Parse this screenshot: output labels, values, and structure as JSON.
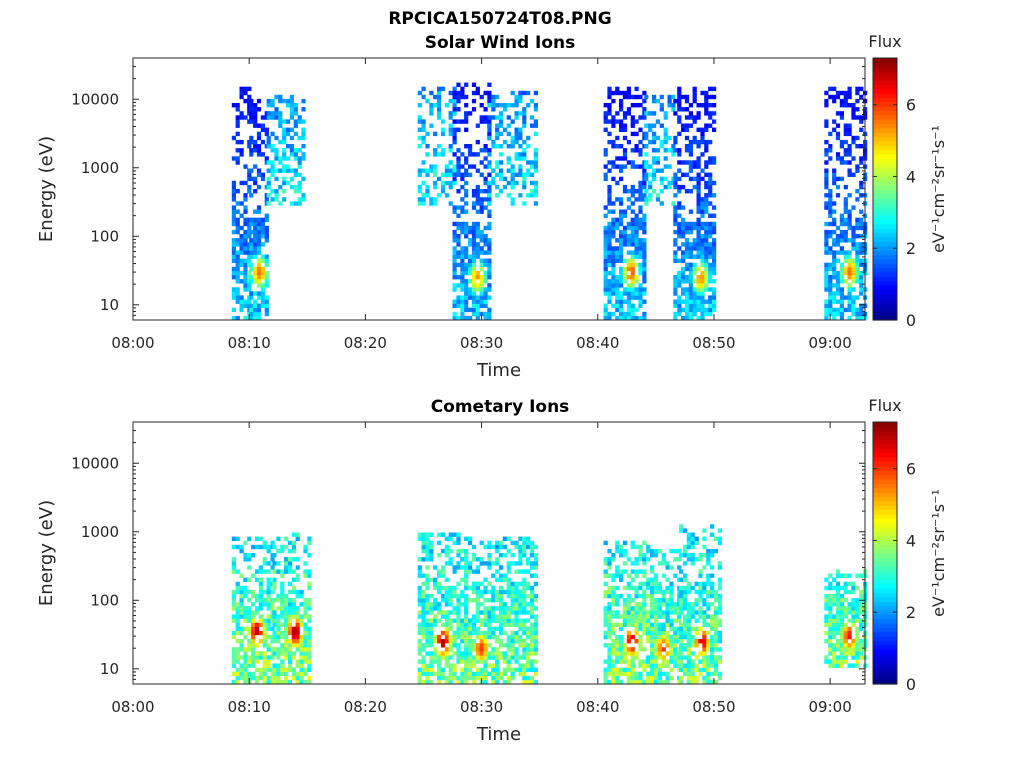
{
  "figure": {
    "title": "RPCICA150724T08.PNG"
  },
  "colors": {
    "axis": "#262626",
    "background": "#ffffff",
    "colormap": "jet"
  },
  "chart_data": [
    {
      "type": "heatmap",
      "title": "Solar Wind Ions",
      "xlabel": "Time",
      "ylabel": "Energy (eV)",
      "xticks": [
        "08:00",
        "08:10",
        "08:20",
        "08:30",
        "08:40",
        "08:50",
        "09:00"
      ],
      "yticks": [
        "10",
        "100",
        "1000",
        "10000"
      ],
      "yscale": "log",
      "xlim_min": [
        0,
        63
      ],
      "ylim": [
        6,
        40000
      ],
      "colorbar": {
        "title": "Flux",
        "label": "eV⁻¹cm⁻²sr⁻¹s⁻¹",
        "ticks": [
          "0",
          "2",
          "4",
          "6"
        ],
        "range": [
          0,
          7.3
        ]
      },
      "bursts": [
        {
          "start": 8.5,
          "end": 10.0,
          "emax": 16000,
          "emin": 6,
          "peak_e": 30,
          "peak_t": 10.5,
          "peak_flux": 5.8,
          "hf_level": 1.0
        },
        {
          "start": 10.0,
          "end": 11.5,
          "emax": 12000,
          "emin": 6,
          "peak_e": 30,
          "peak_t": 10.7,
          "peak_flux": 5.6,
          "hf_level": 1.0
        },
        {
          "start": 11.5,
          "end": 14.5,
          "emax": 12000,
          "emin": 300,
          "peak_e": 3000,
          "peak_t": 13.0,
          "peak_flux": 1.6,
          "hf_level": 1.1
        },
        {
          "start": 24.5,
          "end": 27.5,
          "emax": 16000,
          "emin": 300,
          "peak_e": 3000,
          "peak_t": 26.0,
          "peak_flux": 1.8,
          "hf_level": 1.2
        },
        {
          "start": 27.5,
          "end": 30.5,
          "emax": 18000,
          "emin": 6,
          "peak_e": 25,
          "peak_t": 29.5,
          "peak_flux": 5.3,
          "hf_level": 1.0
        },
        {
          "start": 30.5,
          "end": 34.5,
          "emax": 14000,
          "emin": 300,
          "peak_e": 3000,
          "peak_t": 32.0,
          "peak_flux": 1.8,
          "hf_level": 1.1
        },
        {
          "start": 40.5,
          "end": 44.0,
          "emax": 16000,
          "emin": 6,
          "peak_e": 30,
          "peak_t": 42.7,
          "peak_flux": 5.8,
          "hf_level": 1.0
        },
        {
          "start": 44.0,
          "end": 46.5,
          "emax": 12000,
          "emin": 300,
          "peak_e": 3000,
          "peak_t": 45.0,
          "peak_flux": 1.6,
          "hf_level": 1.1
        },
        {
          "start": 46.5,
          "end": 50.0,
          "emax": 16000,
          "emin": 6,
          "peak_e": 25,
          "peak_t": 48.7,
          "peak_flux": 5.4,
          "hf_level": 1.0
        },
        {
          "start": 59.5,
          "end": 63.0,
          "emax": 16000,
          "emin": 6,
          "peak_e": 30,
          "peak_t": 61.5,
          "peak_flux": 5.6,
          "hf_level": 1.0
        }
      ]
    },
    {
      "type": "heatmap",
      "title": "Cometary Ions",
      "xlabel": "Time",
      "ylabel": "Energy (eV)",
      "xticks": [
        "08:00",
        "08:10",
        "08:20",
        "08:30",
        "08:40",
        "08:50",
        "09:00"
      ],
      "yticks": [
        "10",
        "100",
        "1000",
        "10000"
      ],
      "yscale": "log",
      "xlim_min": [
        0,
        63
      ],
      "ylim": [
        6,
        40000
      ],
      "colorbar": {
        "title": "Flux",
        "label": "eV⁻¹cm⁻²sr⁻¹s⁻¹",
        "ticks": [
          "0",
          "2",
          "4",
          "6"
        ],
        "range": [
          0,
          7.3
        ]
      },
      "bursts": [
        {
          "start": 8.5,
          "end": 12.0,
          "emax": 900,
          "emin": 6,
          "peak_e": 35,
          "peak_t": 10.5,
          "peak_flux": 6.9,
          "hf_level": 2.3
        },
        {
          "start": 12.0,
          "end": 15.0,
          "emax": 1000,
          "emin": 6,
          "peak_e": 35,
          "peak_t": 13.8,
          "peak_flux": 7.1,
          "hf_level": 2.3
        },
        {
          "start": 24.5,
          "end": 28.5,
          "emax": 1000,
          "emin": 6,
          "peak_e": 25,
          "peak_t": 26.5,
          "peak_flux": 7.0,
          "hf_level": 2.3
        },
        {
          "start": 28.5,
          "end": 34.5,
          "emax": 900,
          "emin": 6,
          "peak_e": 20,
          "peak_t": 29.8,
          "peak_flux": 6.0,
          "hf_level": 2.3
        },
        {
          "start": 40.5,
          "end": 44.5,
          "emax": 700,
          "emin": 6,
          "peak_e": 25,
          "peak_t": 42.8,
          "peak_flux": 6.8,
          "hf_level": 2.4
        },
        {
          "start": 44.5,
          "end": 47.0,
          "emax": 600,
          "emin": 6,
          "peak_e": 20,
          "peak_t": 45.5,
          "peak_flux": 6.0,
          "hf_level": 2.3
        },
        {
          "start": 47.0,
          "end": 50.5,
          "emax": 1200,
          "emin": 6,
          "peak_e": 25,
          "peak_t": 48.8,
          "peak_flux": 6.7,
          "hf_level": 2.3
        },
        {
          "start": 59.5,
          "end": 63.0,
          "emax": 300,
          "emin": 10,
          "peak_e": 30,
          "peak_t": 61.5,
          "peak_flux": 6.3,
          "hf_level": 2.3
        }
      ]
    }
  ]
}
